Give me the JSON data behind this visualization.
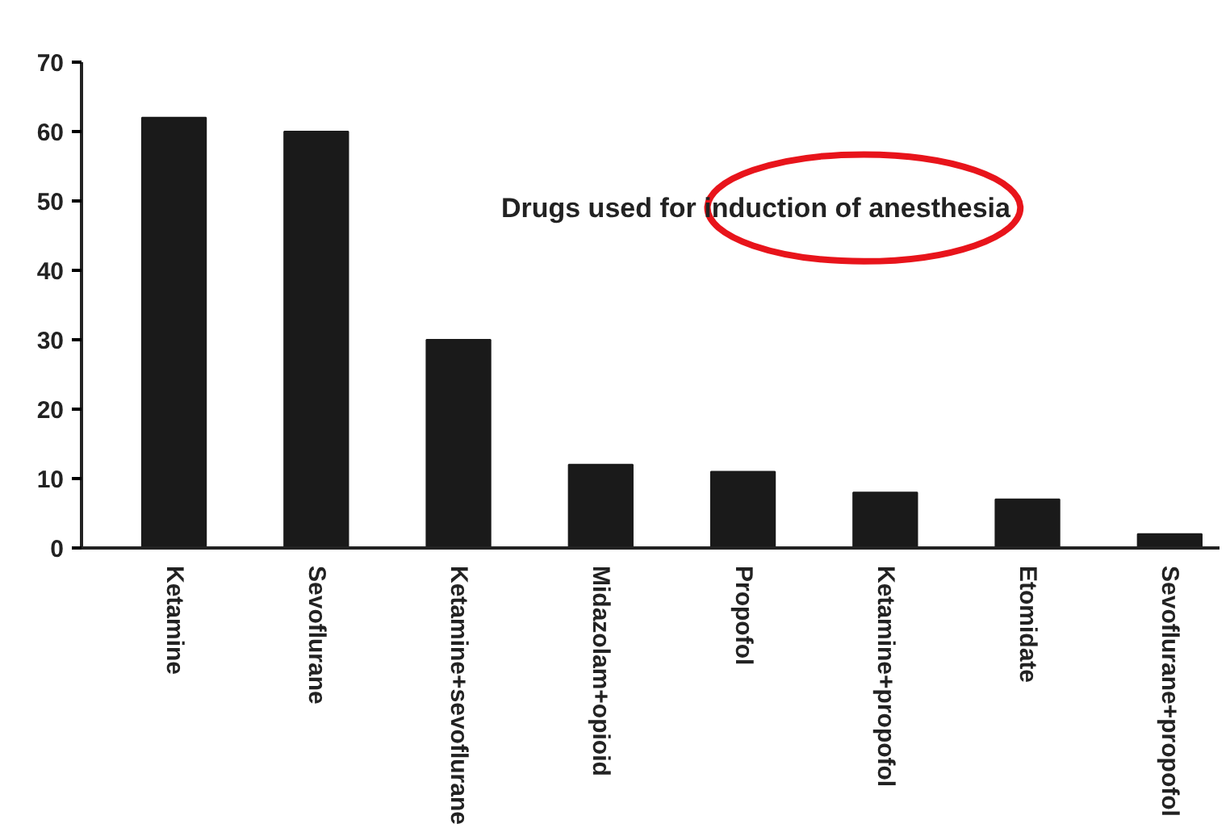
{
  "chart_data": {
    "type": "bar",
    "title": "Drugs used for induction of anesthesia",
    "categories": [
      "Ketamine",
      "Sevoflurane",
      "Ketamine+sevoflurane",
      "Midazolam+opioid",
      "Propofol",
      "Ketamine+propofol",
      "Etomidate",
      "Sevoflurane+propofol"
    ],
    "values": [
      62,
      60,
      30,
      12,
      11,
      8,
      7,
      2
    ],
    "color": "#1a1a1a",
    "ylim": [
      0,
      70
    ],
    "yticks": [
      0,
      10,
      20,
      30,
      40,
      50,
      60,
      70
    ],
    "grid": false
  }
}
